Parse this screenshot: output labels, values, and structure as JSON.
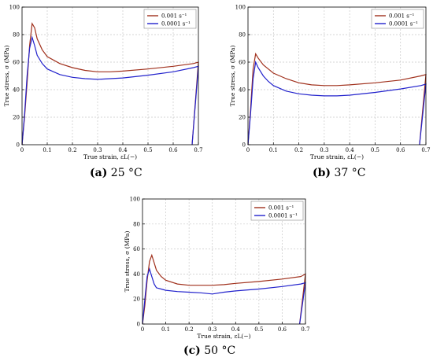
{
  "figure": {
    "panels": [
      {
        "letter": "(a)",
        "temperature": "25 °C"
      },
      {
        "letter": "(b)",
        "temperature": "37 °C"
      },
      {
        "letter": "(c)",
        "temperature": "50 °C"
      }
    ]
  },
  "chart_data": [
    {
      "type": "line",
      "xlabel": "True strain, εL(−)",
      "ylabel": "True stress, σ (MPa)",
      "xlim": [
        0,
        0.7
      ],
      "ylim": [
        0,
        100
      ],
      "xticks": [
        "0",
        "0.1",
        "0.2",
        "0.3",
        "0.4",
        "0.5",
        "0.6",
        "0.7"
      ],
      "yticks": [
        "0",
        "20",
        "40",
        "60",
        "80",
        "100"
      ],
      "grid": true,
      "legend_position": "top-right",
      "series": [
        {
          "name": "0.001 s⁻¹",
          "color": "#a0301c",
          "x": [
            0,
            0.01,
            0.02,
            0.03,
            0.04,
            0.05,
            0.06,
            0.08,
            0.1,
            0.15,
            0.2,
            0.25,
            0.3,
            0.35,
            0.4,
            0.5,
            0.6,
            0.68,
            0.7
          ],
          "y": [
            0,
            20,
            45,
            72,
            88,
            85,
            77,
            69,
            64,
            59,
            56,
            54,
            53,
            53,
            53.5,
            55,
            57,
            59,
            60
          ]
        },
        {
          "name": "0.0001 s⁻¹",
          "color": "#2222cc",
          "x": [
            0,
            0.01,
            0.02,
            0.03,
            0.04,
            0.05,
            0.06,
            0.08,
            0.1,
            0.15,
            0.2,
            0.25,
            0.3,
            0.35,
            0.4,
            0.5,
            0.6,
            0.68,
            0.7
          ],
          "y": [
            0,
            22,
            50,
            70,
            78,
            72,
            65,
            59,
            55,
            51,
            49,
            48,
            47.5,
            48,
            48.5,
            50.5,
            53,
            56,
            57
          ]
        }
      ]
    },
    {
      "type": "line",
      "xlabel": "True strain, εL(−)",
      "ylabel": "True stress, σ (MPa)",
      "xlim": [
        0,
        0.7
      ],
      "ylim": [
        0,
        100
      ],
      "xticks": [
        "0",
        "0.1",
        "0.2",
        "0.3",
        "0.4",
        "0.5",
        "0.6",
        "0.7"
      ],
      "yticks": [
        "0",
        "20",
        "40",
        "60",
        "80",
        "100"
      ],
      "grid": true,
      "legend_position": "top-right",
      "series": [
        {
          "name": "0.001 s⁻¹",
          "color": "#a0301c",
          "x": [
            0,
            0.01,
            0.02,
            0.03,
            0.04,
            0.06,
            0.08,
            0.1,
            0.15,
            0.2,
            0.25,
            0.3,
            0.35,
            0.4,
            0.5,
            0.6,
            0.68,
            0.7
          ],
          "y": [
            0,
            25,
            55,
            66,
            63,
            58,
            55,
            52,
            48,
            45,
            43.5,
            43,
            43,
            43.5,
            45,
            47,
            50,
            51
          ]
        },
        {
          "name": "0.0001 s⁻¹",
          "color": "#2222cc",
          "x": [
            0,
            0.01,
            0.02,
            0.03,
            0.04,
            0.06,
            0.08,
            0.1,
            0.15,
            0.2,
            0.25,
            0.3,
            0.35,
            0.4,
            0.5,
            0.6,
            0.68,
            0.7
          ],
          "y": [
            0,
            22,
            48,
            60,
            56,
            50,
            46,
            43,
            39,
            37,
            36,
            35.5,
            35.5,
            36,
            38,
            40.5,
            43,
            44
          ]
        }
      ]
    },
    {
      "type": "line",
      "xlabel": "True strain, εL(−)",
      "ylabel": "True stress, σ (MPa)",
      "xlim": [
        0,
        0.7
      ],
      "ylim": [
        0,
        100
      ],
      "xticks": [
        "0",
        "0.1",
        "0.2",
        "0.3",
        "0.4",
        "0.5",
        "0.6",
        "0.7"
      ],
      "yticks": [
        "0",
        "20",
        "40",
        "60",
        "80",
        "100"
      ],
      "grid": true,
      "legend_position": "top-right",
      "series": [
        {
          "name": "0.001 s⁻¹",
          "color": "#a0301c",
          "x": [
            0,
            0.01,
            0.02,
            0.03,
            0.04,
            0.05,
            0.06,
            0.08,
            0.1,
            0.15,
            0.2,
            0.25,
            0.3,
            0.35,
            0.4,
            0.5,
            0.6,
            0.68,
            0.7
          ],
          "y": [
            0,
            15,
            35,
            50,
            55,
            49,
            43,
            38,
            35,
            32,
            31,
            31,
            31,
            31.5,
            32.5,
            34,
            36,
            38,
            40
          ]
        },
        {
          "name": "0.0001 s⁻¹",
          "color": "#2222cc",
          "x": [
            0,
            0.01,
            0.02,
            0.03,
            0.04,
            0.05,
            0.06,
            0.08,
            0.1,
            0.15,
            0.2,
            0.25,
            0.3,
            0.35,
            0.4,
            0.5,
            0.6,
            0.68,
            0.7
          ],
          "y": [
            0,
            20,
            38,
            44,
            38,
            32,
            29,
            28,
            27,
            26,
            25.5,
            25,
            24,
            25.5,
            26.5,
            28,
            30,
            32,
            33
          ]
        }
      ]
    }
  ]
}
